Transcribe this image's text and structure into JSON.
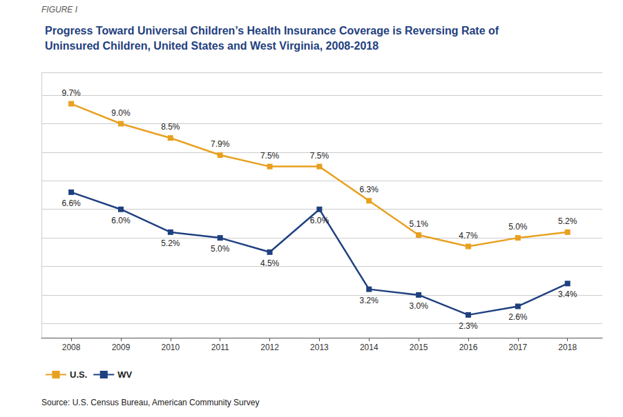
{
  "chart_data": {
    "type": "line",
    "title": "Progress Toward Universal Children’s Health Insurance Coverage is Reversing Rate of\nUninsured Children, United States and West Virginia, 2008-2018",
    "annotations": [
      "FIGURE I",
      "Source: U.S. Census Bureau, American Community Survey"
    ],
    "x": [
      2008,
      2009,
      2010,
      2011,
      2012,
      2013,
      2014,
      2015,
      2016,
      2017,
      2018
    ],
    "xlim": [
      2007.4,
      2018.7
    ],
    "xticks": [
      2008,
      2009,
      2010,
      2011,
      2012,
      2013,
      2014,
      2015,
      2016,
      2017,
      2018
    ],
    "ylim": [
      1.5,
      10.8
    ],
    "yticks": [
      2,
      3,
      4,
      5,
      6,
      7,
      8,
      9,
      10
    ],
    "tick_labels": "x",
    "grid": true,
    "legend": "lower left",
    "data_labels": true,
    "marker": "square",
    "series": [
      {
        "name": "U.S.",
        "color": "#E8A020",
        "values": [
          9.7,
          9.0,
          8.5,
          7.9,
          7.5,
          7.5,
          6.3,
          5.1,
          4.7,
          5.0,
          5.2
        ],
        "value_labels": [
          "9.7%",
          "9.0%",
          "8.5%",
          "7.9%",
          "7.5%",
          "7.5%",
          "6.3%",
          "5.1%",
          "4.7%",
          "5.0%",
          "5.2%"
        ]
      },
      {
        "name": "WV",
        "color": "#1F4080",
        "values": [
          6.6,
          6.0,
          5.2,
          5.0,
          4.5,
          6.0,
          3.2,
          3.0,
          2.3,
          2.6,
          3.4
        ],
        "value_labels": [
          "6.6%",
          "6.0%",
          "5.2%",
          "5.0%",
          "4.5%",
          "6.0%",
          "3.2%",
          "3.0%",
          "2.3%",
          "2.6%",
          "3.4%"
        ]
      }
    ]
  }
}
